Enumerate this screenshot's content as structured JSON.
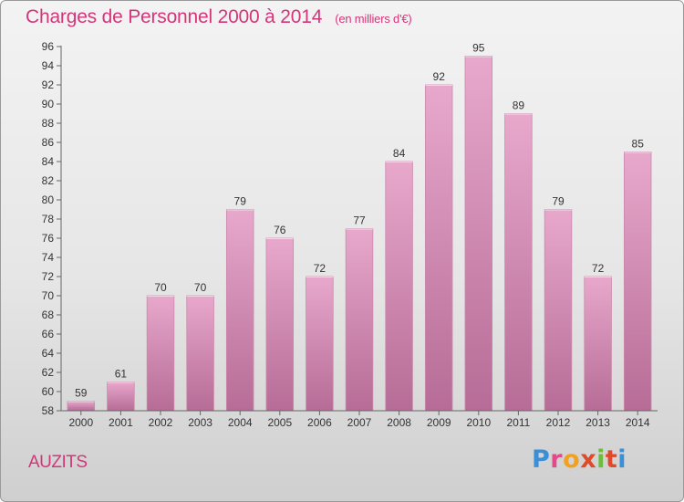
{
  "title": "Charges de Personnel 2000 à 2014",
  "subtitle": "(en milliers d'€)",
  "place_name": "AUZITS",
  "logo_text": "Proxiti",
  "colors": {
    "accent": "#d4367a",
    "bar_top": "#e8a8cc",
    "bar_bottom": "#b66c96"
  },
  "chart_data": {
    "type": "bar",
    "title": "Charges de Personnel 2000 à 2014",
    "subtitle": "(en milliers d'€)",
    "categories": [
      "2000",
      "2001",
      "2002",
      "2003",
      "2004",
      "2005",
      "2006",
      "2007",
      "2008",
      "2009",
      "2010",
      "2011",
      "2012",
      "2013",
      "2014"
    ],
    "values": [
      59,
      61,
      70,
      70,
      79,
      76,
      72,
      77,
      84,
      92,
      95,
      89,
      79,
      72,
      85
    ],
    "ylim": [
      58,
      96
    ],
    "yticks": [
      58,
      60,
      62,
      64,
      66,
      68,
      70,
      72,
      74,
      76,
      78,
      80,
      82,
      84,
      86,
      88,
      90,
      92,
      94,
      96
    ],
    "grid": false,
    "data_labels": true
  }
}
